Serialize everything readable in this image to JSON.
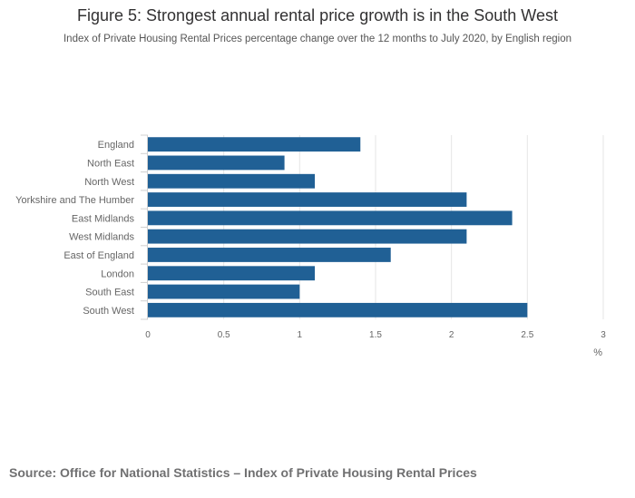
{
  "title": "Figure 5: Strongest annual rental price growth is in the South West",
  "subtitle": "Index of Private Housing Rental Prices percentage change over the 12 months to July 2020, by English region",
  "source": "Source: Office for National Statistics – Index of Private Housing Rental Prices",
  "colors": {
    "bar": "#206095",
    "grid": "#e5e5e5",
    "text": "#666666"
  },
  "chart_data": {
    "type": "bar",
    "orientation": "horizontal",
    "categories": [
      "England",
      "North East",
      "North West",
      "Yorkshire and The Humber",
      "East Midlands",
      "West Midlands",
      "East of England",
      "London",
      "South East",
      "South West"
    ],
    "values": [
      1.4,
      0.9,
      1.1,
      2.1,
      2.4,
      2.1,
      1.6,
      1.1,
      1.0,
      2.5
    ],
    "xlim": [
      0,
      3
    ],
    "xticks": [
      "0",
      "0.5",
      "1",
      "1.5",
      "2",
      "2.5",
      "3"
    ],
    "xtick_values": [
      0,
      0.5,
      1,
      1.5,
      2,
      2.5,
      3
    ],
    "xlabel": "%",
    "ylabel": "",
    "grid": true,
    "legend": "none"
  }
}
